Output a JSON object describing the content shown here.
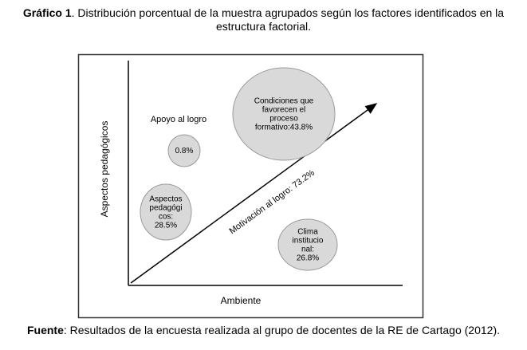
{
  "caption": {
    "label": "Gráfico 1",
    "text": ". Distribución porcentual de la muestra agrupados según los factores identificados en la estructura factorial."
  },
  "figure": {
    "y_axis_label": "Aspectos pedagógicos",
    "x_axis_label": "Ambiente",
    "arrow_label": "Motivación al logro: 73.2%",
    "outside_label": "Apoyo al logro",
    "bubbles": [
      {
        "lines": [
          "Condiciones que",
          "favorecen el",
          "proceso",
          "formativo:43.8%"
        ]
      },
      {
        "lines": [
          "0.8%"
        ]
      },
      {
        "lines": [
          "Aspectos",
          "pedagógi",
          "cos:",
          "28.5%"
        ]
      },
      {
        "lines": [
          "Clima",
          "institucio",
          "nal:",
          "26.8%"
        ]
      }
    ]
  },
  "source": {
    "label": "Fuente",
    "text": ": Resultados de la encuesta realizada al grupo de docentes de la RE de Cartago (2012)."
  }
}
